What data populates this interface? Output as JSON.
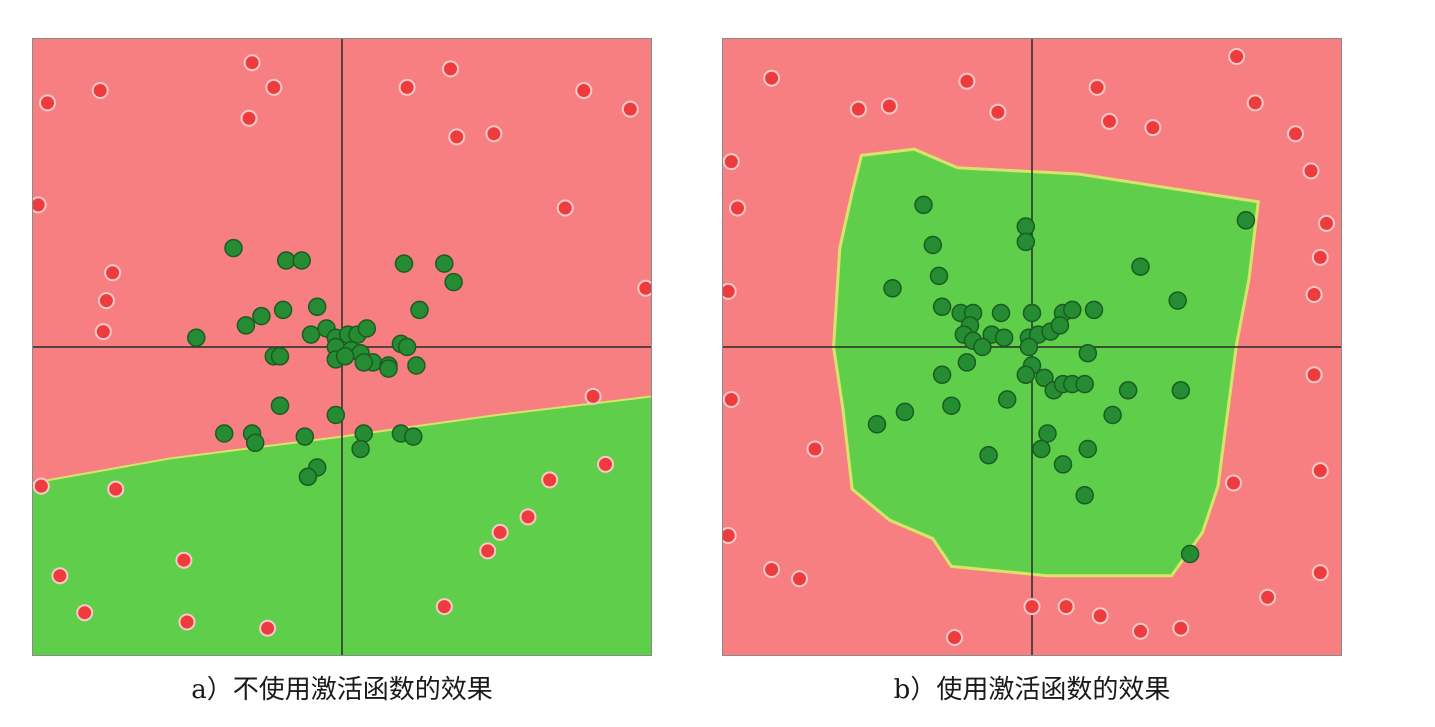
{
  "colors": {
    "class_red_region": "#f77f82",
    "class_green_region": "#5fcf4b",
    "red_point": "#ee3b3d",
    "red_point_edge": "#f7c9c9",
    "green_point": "#268c33",
    "green_point_edge": "#1a5c22",
    "axis": "#2a2a2a",
    "frame": "#8a8a8a"
  },
  "chart_data": [
    {
      "type": "scatter",
      "caption": "a）不使用激活函数的效果",
      "xlim": [
        -1,
        1
      ],
      "ylim": [
        -1,
        1
      ],
      "grid": false,
      "axes_through_origin": true,
      "decision_boundary": {
        "kind": "linear",
        "regions": {
          "above": "red",
          "below": "green"
        },
        "points": [
          [
            -1,
            -0.44
          ],
          [
            -0.55,
            -0.36
          ],
          [
            0,
            -0.29
          ],
          [
            0.5,
            -0.22
          ],
          [
            1,
            -0.16
          ]
        ]
      },
      "series": [
        {
          "class": "red",
          "points": [
            [
              -0.29,
              0.92
            ],
            [
              -0.78,
              0.83
            ],
            [
              -0.95,
              0.79
            ],
            [
              -0.22,
              0.84
            ],
            [
              -0.3,
              0.74
            ],
            [
              0.21,
              0.84
            ],
            [
              0.35,
              0.9
            ],
            [
              0.78,
              0.83
            ],
            [
              0.93,
              0.77
            ],
            [
              0.37,
              0.68
            ],
            [
              0.49,
              0.69
            ],
            [
              -0.98,
              0.46
            ],
            [
              0.72,
              0.45
            ],
            [
              -0.74,
              0.24
            ],
            [
              -0.76,
              0.15
            ],
            [
              -0.77,
              0.05
            ],
            [
              0.98,
              0.19
            ],
            [
              0.81,
              -0.16
            ],
            [
              0.85,
              -0.38
            ],
            [
              0.67,
              -0.43
            ],
            [
              0.6,
              -0.55
            ],
            [
              0.51,
              -0.6
            ],
            [
              0.47,
              -0.66
            ],
            [
              -0.97,
              -0.45
            ],
            [
              -0.73,
              -0.46
            ],
            [
              -0.51,
              -0.69
            ],
            [
              -0.91,
              -0.74
            ],
            [
              -0.83,
              -0.86
            ],
            [
              -0.5,
              -0.89
            ],
            [
              -0.24,
              -0.91
            ],
            [
              0.33,
              -0.84
            ]
          ]
        },
        {
          "class": "green",
          "points": [
            [
              -0.35,
              0.32
            ],
            [
              -0.18,
              0.28
            ],
            [
              -0.13,
              0.28
            ],
            [
              -0.26,
              0.1
            ],
            [
              -0.19,
              0.12
            ],
            [
              -0.08,
              0.13
            ],
            [
              -0.1,
              0.04
            ],
            [
              -0.05,
              0.06
            ],
            [
              -0.02,
              0.03
            ],
            [
              0.02,
              0.04
            ],
            [
              0.05,
              0.04
            ],
            [
              0.08,
              0.06
            ],
            [
              -0.02,
              0.0
            ],
            [
              0.03,
              -0.01
            ],
            [
              0.06,
              -0.02
            ],
            [
              0.1,
              -0.05
            ],
            [
              0.2,
              0.27
            ],
            [
              0.33,
              0.27
            ],
            [
              0.36,
              0.21
            ],
            [
              0.25,
              0.12
            ],
            [
              0.19,
              0.01
            ],
            [
              0.21,
              0.0
            ],
            [
              0.15,
              -0.06
            ],
            [
              0.24,
              -0.06
            ],
            [
              -0.47,
              0.03
            ],
            [
              -0.31,
              0.07
            ],
            [
              -0.22,
              -0.03
            ],
            [
              -0.2,
              -0.03
            ],
            [
              -0.02,
              -0.04
            ],
            [
              0.01,
              -0.03
            ],
            [
              0.07,
              -0.05
            ],
            [
              0.15,
              -0.07
            ],
            [
              -0.2,
              -0.19
            ],
            [
              -0.02,
              -0.22
            ],
            [
              -0.29,
              -0.28
            ],
            [
              -0.38,
              -0.28
            ],
            [
              -0.28,
              -0.31
            ],
            [
              -0.12,
              -0.29
            ],
            [
              0.07,
              -0.28
            ],
            [
              0.19,
              -0.28
            ],
            [
              0.23,
              -0.29
            ],
            [
              0.06,
              -0.33
            ],
            [
              -0.08,
              -0.39
            ],
            [
              -0.11,
              -0.42
            ]
          ]
        }
      ]
    },
    {
      "type": "scatter",
      "caption": "b）使用激活函数的效果",
      "xlim": [
        -1,
        1
      ],
      "ylim": [
        -1,
        1
      ],
      "grid": false,
      "axes_through_origin": true,
      "decision_boundary": {
        "kind": "polygon",
        "inside": "green",
        "outside": "red",
        "vertices": [
          [
            -0.55,
            0.62
          ],
          [
            -0.38,
            0.64
          ],
          [
            -0.24,
            0.58
          ],
          [
            0.15,
            0.56
          ],
          [
            0.6,
            0.49
          ],
          [
            0.73,
            0.47
          ],
          [
            0.7,
            0.22
          ],
          [
            0.66,
            0.01
          ],
          [
            0.63,
            -0.22
          ],
          [
            0.6,
            -0.45
          ],
          [
            0.55,
            -0.6
          ],
          [
            0.45,
            -0.74
          ],
          [
            0.2,
            -0.74
          ],
          [
            0.05,
            -0.74
          ],
          [
            -0.26,
            -0.71
          ],
          [
            -0.32,
            -0.62
          ],
          [
            -0.46,
            -0.56
          ],
          [
            -0.58,
            -0.46
          ],
          [
            -0.61,
            -0.2
          ],
          [
            -0.64,
            0.0
          ],
          [
            -0.62,
            0.32
          ],
          [
            -0.58,
            0.5
          ]
        ]
      },
      "series": [
        {
          "class": "red",
          "points": [
            [
              -0.84,
              0.87
            ],
            [
              -0.21,
              0.86
            ],
            [
              0.21,
              0.84
            ],
            [
              0.66,
              0.94
            ],
            [
              0.72,
              0.79
            ],
            [
              -0.56,
              0.77
            ],
            [
              -0.46,
              0.78
            ],
            [
              -0.11,
              0.76
            ],
            [
              0.25,
              0.73
            ],
            [
              0.39,
              0.71
            ],
            [
              0.85,
              0.69
            ],
            [
              -0.97,
              0.6
            ],
            [
              -0.95,
              0.45
            ],
            [
              -0.98,
              0.18
            ],
            [
              0.9,
              0.57
            ],
            [
              0.95,
              0.4
            ],
            [
              -0.97,
              -0.17
            ],
            [
              0.93,
              0.29
            ],
            [
              0.91,
              0.17
            ],
            [
              -0.7,
              -0.33
            ],
            [
              0.91,
              -0.09
            ],
            [
              0.93,
              -0.4
            ],
            [
              0.65,
              -0.44
            ],
            [
              -0.98,
              -0.61
            ],
            [
              -0.84,
              -0.72
            ],
            [
              -0.75,
              -0.75
            ],
            [
              0.93,
              -0.73
            ],
            [
              0.76,
              -0.81
            ],
            [
              0.11,
              -0.84
            ],
            [
              -0.25,
              -0.94
            ],
            [
              0.0,
              -0.84
            ],
            [
              0.22,
              -0.87
            ],
            [
              0.35,
              -0.92
            ],
            [
              0.48,
              -0.91
            ]
          ]
        },
        {
          "class": "green",
          "points": [
            [
              -0.35,
              0.46
            ],
            [
              -0.02,
              0.39
            ],
            [
              -0.02,
              0.34
            ],
            [
              0.69,
              0.41
            ],
            [
              -0.32,
              0.33
            ],
            [
              -0.3,
              0.23
            ],
            [
              -0.45,
              0.19
            ],
            [
              0.35,
              0.26
            ],
            [
              0.47,
              0.15
            ],
            [
              -0.29,
              0.13
            ],
            [
              -0.23,
              0.11
            ],
            [
              -0.19,
              0.11
            ],
            [
              -0.1,
              0.11
            ],
            [
              0.0,
              0.11
            ],
            [
              0.1,
              0.11
            ],
            [
              0.13,
              0.12
            ],
            [
              0.2,
              0.12
            ],
            [
              -0.2,
              0.07
            ],
            [
              -0.22,
              0.04
            ],
            [
              -0.19,
              0.02
            ],
            [
              -0.13,
              0.04
            ],
            [
              -0.09,
              0.03
            ],
            [
              -0.01,
              0.03
            ],
            [
              0.02,
              0.04
            ],
            [
              0.06,
              0.05
            ],
            [
              0.09,
              0.07
            ],
            [
              -0.16,
              0.0
            ],
            [
              -0.01,
              0.0
            ],
            [
              0.18,
              -0.02
            ],
            [
              0.0,
              -0.06
            ],
            [
              -0.02,
              -0.09
            ],
            [
              -0.21,
              -0.05
            ],
            [
              -0.29,
              -0.09
            ],
            [
              0.04,
              -0.1
            ],
            [
              0.07,
              -0.14
            ],
            [
              0.1,
              -0.12
            ],
            [
              0.13,
              -0.12
            ],
            [
              0.17,
              -0.12
            ],
            [
              0.31,
              -0.14
            ],
            [
              0.48,
              -0.14
            ],
            [
              -0.08,
              -0.17
            ],
            [
              -0.41,
              -0.21
            ],
            [
              -0.26,
              -0.19
            ],
            [
              0.26,
              -0.22
            ],
            [
              -0.5,
              -0.25
            ],
            [
              0.05,
              -0.28
            ],
            [
              0.03,
              -0.33
            ],
            [
              0.18,
              -0.33
            ],
            [
              -0.14,
              -0.35
            ],
            [
              0.1,
              -0.38
            ],
            [
              0.17,
              -0.48
            ],
            [
              0.51,
              -0.67
            ]
          ]
        }
      ]
    }
  ]
}
